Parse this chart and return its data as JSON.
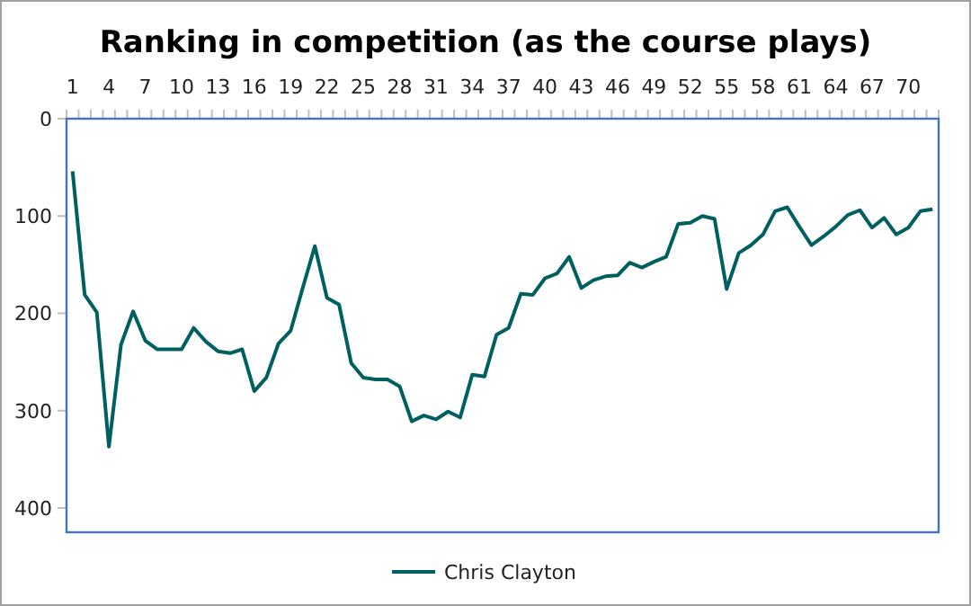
{
  "chart_data": {
    "type": "line",
    "title": "Ranking in competition (as the course plays)",
    "categories": [
      "1",
      null,
      null,
      "4",
      null,
      null,
      "7",
      null,
      null,
      "10",
      null,
      null,
      "13",
      null,
      null,
      "16",
      null,
      null,
      "19",
      null,
      null,
      "22",
      null,
      null,
      "25",
      null,
      null,
      "28",
      null,
      null,
      "31",
      null,
      null,
      "34",
      null,
      null,
      "37",
      null,
      null,
      "40",
      null,
      null,
      "43",
      null,
      null,
      "46",
      null,
      null,
      "49",
      null,
      null,
      "52",
      null,
      null,
      "55",
      null,
      null,
      "58",
      null,
      null,
      "61",
      null,
      null,
      "64",
      null,
      null,
      "67",
      null,
      null,
      "70",
      null,
      null
    ],
    "series": [
      {
        "name": "Chris Clayton",
        "color": "#006060",
        "values": [
          54,
          181,
          199,
          337,
          232,
          198,
          228,
          237,
          237,
          237,
          215,
          229,
          239,
          241,
          237,
          280,
          266,
          231,
          218,
          174,
          131,
          184,
          191,
          251,
          266,
          268,
          268,
          275,
          311,
          305,
          309,
          301,
          307,
          263,
          265,
          222,
          215,
          180,
          181,
          164,
          159,
          142,
          174,
          166,
          162,
          161,
          148,
          153,
          147,
          142,
          108,
          107,
          100,
          103,
          175,
          138,
          130,
          119,
          95,
          91,
          111,
          130,
          121,
          111,
          99,
          94,
          112,
          102,
          119,
          112,
          95,
          93
        ]
      }
    ],
    "ylim": [
      425,
      0
    ],
    "yticks": [
      0,
      100,
      200,
      300,
      400
    ],
    "legend": "bottom",
    "grid": false,
    "line_style": "solid",
    "marker": "none"
  }
}
